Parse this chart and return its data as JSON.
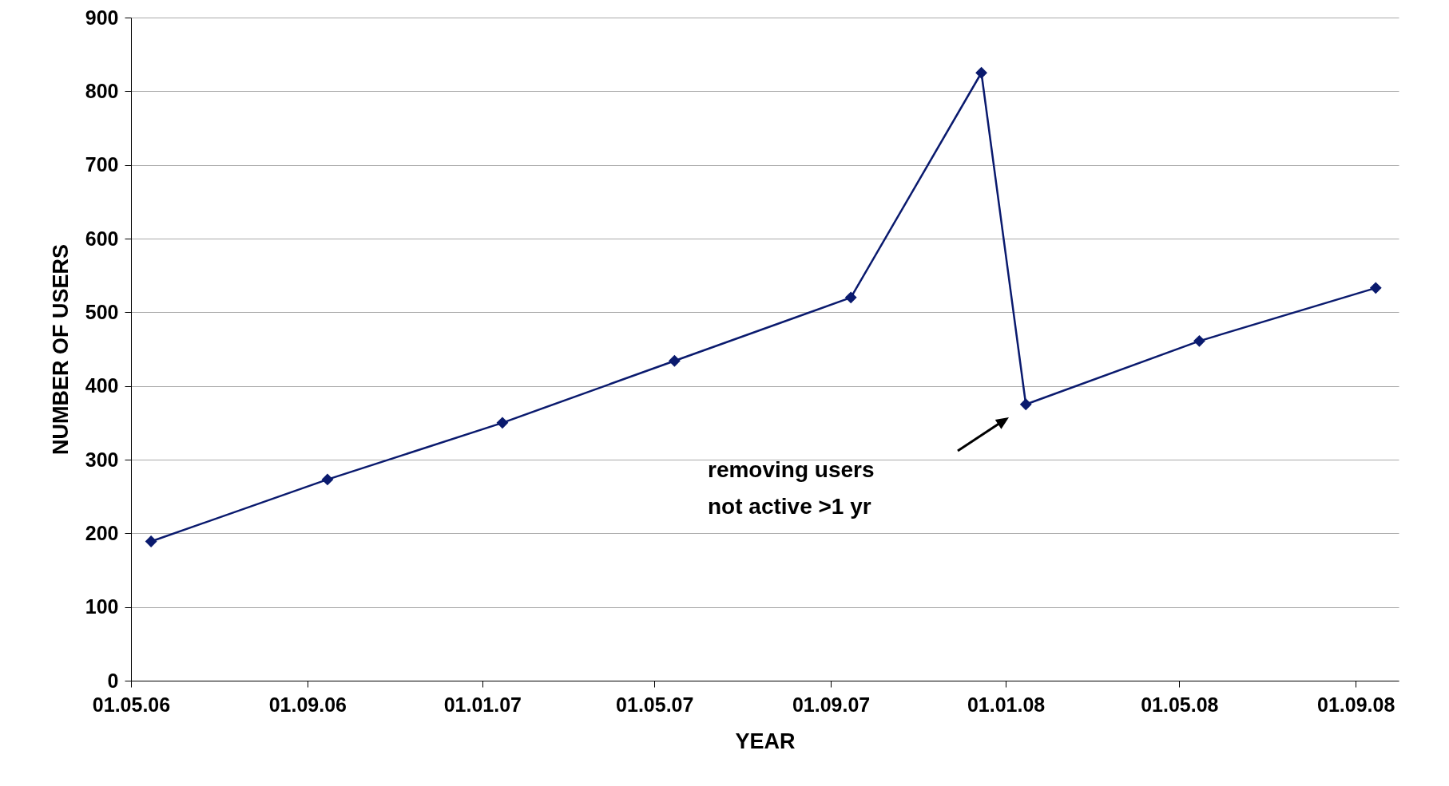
{
  "chart_data": {
    "type": "line",
    "xlabel": "YEAR",
    "ylabel": "NUMBER OF USERS",
    "x": [
      "2006-05-15",
      "2006-09-15",
      "2007-01-15",
      "2007-05-15",
      "2007-09-15",
      "2007-12-15",
      "2008-01-15",
      "2008-05-15",
      "2008-09-15"
    ],
    "series": [
      {
        "color": "#0a1a6e",
        "values": [
          189,
          273,
          350,
          434,
          520,
          825,
          375,
          461,
          533
        ]
      }
    ],
    "xlim": [
      "2006-05-01",
      "2008-10-01"
    ],
    "xticks": [
      {
        "value": "2006-05-01",
        "label": "01.05.06"
      },
      {
        "value": "2006-09-01",
        "label": "01.09.06"
      },
      {
        "value": "2007-01-01",
        "label": "01.01.07"
      },
      {
        "value": "2007-05-01",
        "label": "01.05.07"
      },
      {
        "value": "2007-09-01",
        "label": "01.09.07"
      },
      {
        "value": "2008-01-01",
        "label": "01.01.08"
      },
      {
        "value": "2008-05-01",
        "label": "01.05.08"
      },
      {
        "value": "2008-09-01",
        "label": "01.09.08"
      }
    ],
    "ylim": [
      0,
      900
    ],
    "yticks": [
      0,
      100,
      200,
      300,
      400,
      500,
      600,
      700,
      800,
      900
    ],
    "grid": "y",
    "marker": "diamond",
    "line_style": "solid",
    "annotations": [
      "removing users\nnot active >1 yr"
    ]
  }
}
